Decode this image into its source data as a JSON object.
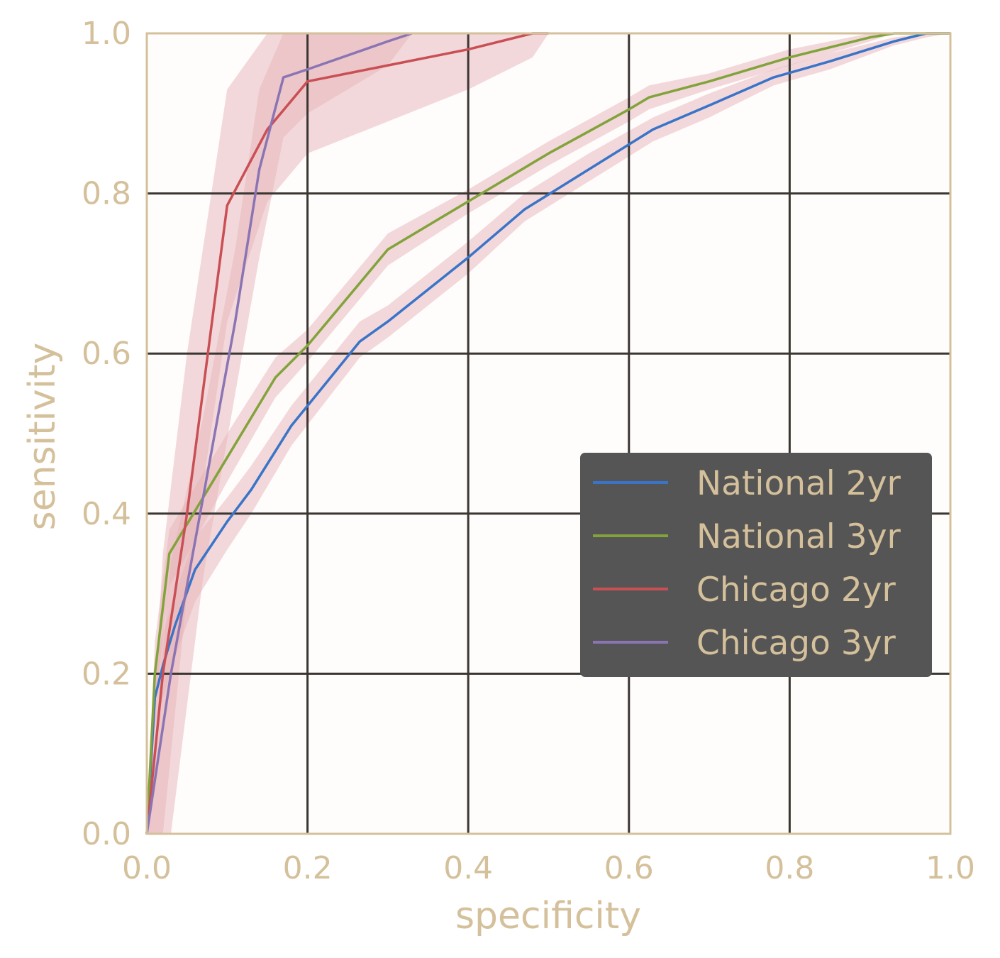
{
  "chart_data": {
    "type": "line",
    "xlabel": "specificity",
    "ylabel": "sensitivity",
    "xlim": [
      0.0,
      1.0
    ],
    "ylim": [
      0.0,
      1.0
    ],
    "xticks": [
      "0.0",
      "0.2",
      "0.4",
      "0.6",
      "0.8",
      "1.0"
    ],
    "yticks": [
      "0.0",
      "0.2",
      "0.4",
      "0.6",
      "0.8",
      "1.0"
    ],
    "grid": true,
    "legend_position": "lower-right",
    "colors": {
      "background": "#fffcfc",
      "axis_frame": "#d4c09a",
      "grid": "#3a3632",
      "legend_bg": "#555555",
      "band": "#e6b4b7"
    },
    "series": [
      {
        "name": "National 2yr",
        "color": "#3a74c8",
        "x": [
          0.0,
          0.01,
          0.02,
          0.035,
          0.06,
          0.1,
          0.13,
          0.18,
          0.265,
          0.3,
          0.4,
          0.47,
          0.55,
          0.63,
          0.7,
          0.78,
          0.85,
          0.93,
          0.97,
          1.0
        ],
        "y": [
          0.0,
          0.17,
          0.21,
          0.26,
          0.33,
          0.39,
          0.43,
          0.51,
          0.615,
          0.64,
          0.72,
          0.78,
          0.83,
          0.88,
          0.91,
          0.945,
          0.965,
          0.99,
          1.0,
          1.0
        ],
        "band_lower": [
          0.0,
          0.13,
          0.17,
          0.22,
          0.29,
          0.355,
          0.4,
          0.485,
          0.595,
          0.62,
          0.7,
          0.765,
          0.815,
          0.865,
          0.895,
          0.935,
          0.955,
          0.985,
          0.995,
          1.0
        ],
        "band_upper": [
          0.0,
          0.21,
          0.25,
          0.3,
          0.37,
          0.42,
          0.46,
          0.535,
          0.64,
          0.66,
          0.74,
          0.8,
          0.85,
          0.895,
          0.925,
          0.955,
          0.975,
          0.995,
          1.0,
          1.0
        ]
      },
      {
        "name": "National 3yr",
        "color": "#82a33c",
        "x": [
          0.0,
          0.01,
          0.028,
          0.04,
          0.1,
          0.16,
          0.2,
          0.3,
          0.4,
          0.5,
          0.6,
          0.625,
          0.7,
          0.8,
          0.9,
          0.93,
          1.0
        ],
        "y": [
          0.0,
          0.2,
          0.35,
          0.37,
          0.47,
          0.57,
          0.61,
          0.73,
          0.79,
          0.85,
          0.905,
          0.92,
          0.94,
          0.97,
          0.995,
          1.0,
          1.0
        ],
        "band_lower": [
          0.0,
          0.16,
          0.31,
          0.33,
          0.44,
          0.545,
          0.59,
          0.71,
          0.775,
          0.835,
          0.89,
          0.905,
          0.93,
          0.96,
          0.99,
          1.0,
          1.0
        ],
        "band_upper": [
          0.0,
          0.24,
          0.38,
          0.4,
          0.5,
          0.595,
          0.63,
          0.75,
          0.805,
          0.865,
          0.92,
          0.935,
          0.95,
          0.98,
          1.0,
          1.0,
          1.0
        ]
      },
      {
        "name": "Chicago 2yr",
        "color": "#c94f55",
        "x": [
          0.0,
          0.02,
          0.05,
          0.1,
          0.15,
          0.2,
          0.3,
          0.4,
          0.48,
          0.5
        ],
        "y": [
          0.0,
          0.2,
          0.4,
          0.785,
          0.88,
          0.94,
          0.96,
          0.98,
          1.0,
          1.0
        ],
        "band_lower": [
          0.0,
          0.0,
          0.3,
          0.64,
          0.79,
          0.85,
          0.89,
          0.93,
          0.97,
          1.0
        ],
        "band_upper": [
          0.0,
          0.35,
          0.6,
          0.93,
          1.0,
          1.0,
          1.0,
          1.0,
          1.0,
          1.0
        ]
      },
      {
        "name": "Chicago 3yr",
        "color": "#8a74b4",
        "x": [
          0.0,
          0.03,
          0.07,
          0.11,
          0.14,
          0.17,
          0.2,
          0.3,
          0.33
        ],
        "y": [
          0.0,
          0.2,
          0.42,
          0.64,
          0.83,
          0.945,
          0.955,
          0.99,
          1.0
        ],
        "band_lower": [
          0.0,
          0.0,
          0.32,
          0.55,
          0.72,
          0.87,
          0.9,
          0.96,
          1.0
        ],
        "band_upper": [
          0.0,
          0.34,
          0.52,
          0.73,
          0.93,
          1.0,
          1.0,
          1.0,
          1.0
        ]
      }
    ]
  }
}
